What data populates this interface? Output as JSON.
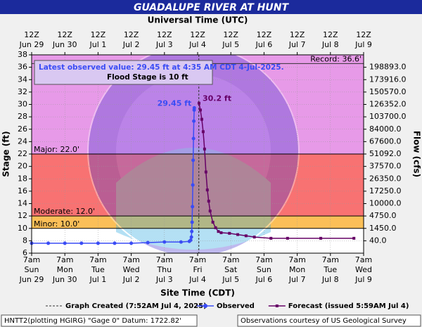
{
  "chart_data": {
    "type": "line",
    "title": "GUADALUPE RIVER AT HUNT",
    "x2label": "Universal Time (UTC)",
    "xlabel": "Site Time (CDT)",
    "ylabel": "Stage (ft)",
    "y2label": "Flow (cfs)",
    "xlim": [
      "Jun 29 07:00",
      "Jul 9 07:00"
    ],
    "xticks": [
      {
        "value": "Jun 29 07:00",
        "label": [
          "7am",
          "Sun",
          "Jun 29"
        ]
      },
      {
        "value": "Jun 30 07:00",
        "label": [
          "7am",
          "Mon",
          "Jun 30"
        ]
      },
      {
        "value": "Jul 1 07:00",
        "label": [
          "7am",
          "Tue",
          "Jul 1"
        ]
      },
      {
        "value": "Jul 2 07:00",
        "label": [
          "7am",
          "Wed",
          "Jul 2"
        ]
      },
      {
        "value": "Jul 3 07:00",
        "label": [
          "7am",
          "Thu",
          "Jul 3"
        ]
      },
      {
        "value": "Jul 4 07:00",
        "label": [
          "7am",
          "Fri",
          "Jul 4"
        ]
      },
      {
        "value": "Jul 5 07:00",
        "label": [
          "7am",
          "Sat",
          "Jul 5"
        ]
      },
      {
        "value": "Jul 6 07:00",
        "label": [
          "7am",
          "Sun",
          "Jul 6"
        ]
      },
      {
        "value": "Jul 7 07:00",
        "label": [
          "7am",
          "Mon",
          "Jul 7"
        ]
      },
      {
        "value": "Jul 8 07:00",
        "label": [
          "7am",
          "Tue",
          "Jul 8"
        ]
      },
      {
        "value": "Jul 9 07:00",
        "label": [
          "7am",
          "Wed",
          "Jul 9"
        ]
      }
    ],
    "x2ticks": [
      {
        "value": "Jun 29 07:00",
        "label": [
          "12Z",
          "Jun 29"
        ]
      },
      {
        "value": "Jun 30 07:00",
        "label": [
          "12Z",
          "Jun 30"
        ]
      },
      {
        "value": "Jul 1 07:00",
        "label": [
          "12Z",
          "Jul 1"
        ]
      },
      {
        "value": "Jul 2 07:00",
        "label": [
          "12Z",
          "Jul 2"
        ]
      },
      {
        "value": "Jul 3 07:00",
        "label": [
          "12Z",
          "Jul 3"
        ]
      },
      {
        "value": "Jul 4 07:00",
        "label": [
          "12Z",
          "Jul 4"
        ]
      },
      {
        "value": "Jul 5 07:00",
        "label": [
          "12Z",
          "Jul 5"
        ]
      },
      {
        "value": "Jul 6 07:00",
        "label": [
          "12Z",
          "Jul 6"
        ]
      },
      {
        "value": "Jul 7 07:00",
        "label": [
          "12Z",
          "Jul 7"
        ]
      },
      {
        "value": "Jul 8 07:00",
        "label": [
          "12Z",
          "Jul 8"
        ]
      },
      {
        "value": "Jul 9 07:00",
        "label": [
          "12Z",
          "Jul 9"
        ]
      }
    ],
    "ylim": [
      6,
      38
    ],
    "yticks": [
      6,
      8,
      10,
      12,
      14,
      16,
      18,
      20,
      22,
      24,
      26,
      28,
      30,
      32,
      34,
      36,
      38
    ],
    "y2ticks": [
      {
        "value": 198893,
        "label": "198893.0"
      },
      {
        "value": 173916,
        "label": "173916.0"
      },
      {
        "value": 150570,
        "label": "150570.0"
      },
      {
        "value": 126352,
        "label": "126352.0"
      },
      {
        "value": 103700,
        "label": "103700.0"
      },
      {
        "value": 84000,
        "label": "84000.0"
      },
      {
        "value": 67600,
        "label": "67600.0"
      },
      {
        "value": 51092,
        "label": "51092.0"
      },
      {
        "value": 37570,
        "label": "37570.0"
      },
      {
        "value": 26350,
        "label": "26350.0"
      },
      {
        "value": 17250,
        "label": "17250.0"
      },
      {
        "value": 10000,
        "label": "10000.0"
      },
      {
        "value": 4750,
        "label": "4750.0"
      },
      {
        "value": 1450,
        "label": "1450.0"
      },
      {
        "value": 40,
        "label": "40.0"
      }
    ],
    "y2_at_stage": [
      36,
      34,
      32,
      30,
      28,
      26,
      24,
      22,
      20,
      18,
      16,
      14,
      12,
      10,
      8
    ],
    "grid": true,
    "thresholds": [
      {
        "label": "Record: 36.6'",
        "value": 36.6,
        "color": "#333333",
        "anchor": "end"
      },
      {
        "label": "Major: 22.0'",
        "value": 22,
        "color": "#000000",
        "fill": "#e79ae8",
        "anchor": "start"
      },
      {
        "label": "Moderate: 12.0'",
        "value": 12,
        "color": "#000000",
        "fill": "#f87272",
        "anchor": "start"
      },
      {
        "label": "Minor: 10.0'",
        "value": 10,
        "color": "#000000",
        "fill": "#fbbf58",
        "anchor": "start"
      }
    ],
    "info_text": "Latest observed value: 29.45 ft at 4:35 AM CDT 4-Jul-2025.",
    "info_text2": "Flood Stage is 10 ft",
    "series": [
      {
        "name": "Observed",
        "color": "#3a4cf5",
        "marker": "circle",
        "x": [
          "Jun 29 07:00",
          "Jun 29 19:00",
          "Jun 30 07:00",
          "Jun 30 19:00",
          "Jul 1 07:00",
          "Jul 1 19:00",
          "Jul 2 07:00",
          "Jul 2 19:00",
          "Jul 3 07:00",
          "Jul 3 19:00",
          "Jul 4 01:00",
          "Jul 4 02:00",
          "Jul 4 02:30",
          "Jul 4 02:45",
          "Jul 4 03:00",
          "Jul 4 03:15",
          "Jul 4 03:30",
          "Jul 4 03:45",
          "Jul 4 04:00",
          "Jul 4 04:15",
          "Jul 4 04:30",
          "Jul 4 04:35"
        ],
        "values": [
          7.6,
          7.6,
          7.6,
          7.6,
          7.6,
          7.6,
          7.6,
          7.7,
          7.8,
          7.8,
          7.9,
          8.1,
          8.6,
          9.5,
          11,
          13.5,
          17,
          21,
          24.5,
          27.3,
          29.1,
          29.45
        ],
        "value_labels": [
          null,
          null,
          null,
          null,
          null,
          null,
          null,
          null,
          null,
          null,
          null,
          null,
          null,
          null,
          null,
          null,
          null,
          null,
          null,
          null,
          null,
          "29.45 ft"
        ]
      },
      {
        "name": "Forecast (issued 5:59AM Jul 4)",
        "color": "#660066",
        "marker": "square",
        "x": [
          "Jul 4 08:00",
          "Jul 4 09:00",
          "Jul 4 10:00",
          "Jul 4 11:00",
          "Jul 4 12:00",
          "Jul 4 13:00",
          "Jul 4 14:00",
          "Jul 4 15:00",
          "Jul 4 16:00",
          "Jul 4 18:00",
          "Jul 4 20:00",
          "Jul 4 22:00",
          "Jul 5 00:00",
          "Jul 5 06:00",
          "Jul 5 12:00",
          "Jul 5 18:00",
          "Jul 6 00:00",
          "Jul 6 12:00",
          "Jul 7 00:00",
          "Jul 8 00:00",
          "Jul 9 00:00"
        ],
        "values": [
          30.2,
          29.1,
          27.6,
          25.6,
          22.8,
          19.1,
          16.2,
          14.4,
          12.8,
          11,
          10.1,
          9.5,
          9.3,
          9.2,
          9,
          8.8,
          8.6,
          8.4,
          8.4,
          8.4,
          8.4
        ],
        "value_labels": [
          "30.2 ft",
          null,
          null,
          null,
          null,
          null,
          null,
          null,
          null,
          null,
          null,
          null,
          null,
          null,
          null,
          null,
          null,
          null,
          null,
          null,
          null
        ]
      }
    ],
    "created_label": "Graph Created (7:52AM Jul 4, 2025)",
    "created_x": "Jul 4 07:52",
    "footer_left": "HNTT2(plotting HGIRG) \"Gage 0\" Datum: 1722.82'",
    "footer_right": "Observations courtesy of US Geological Survey"
  }
}
